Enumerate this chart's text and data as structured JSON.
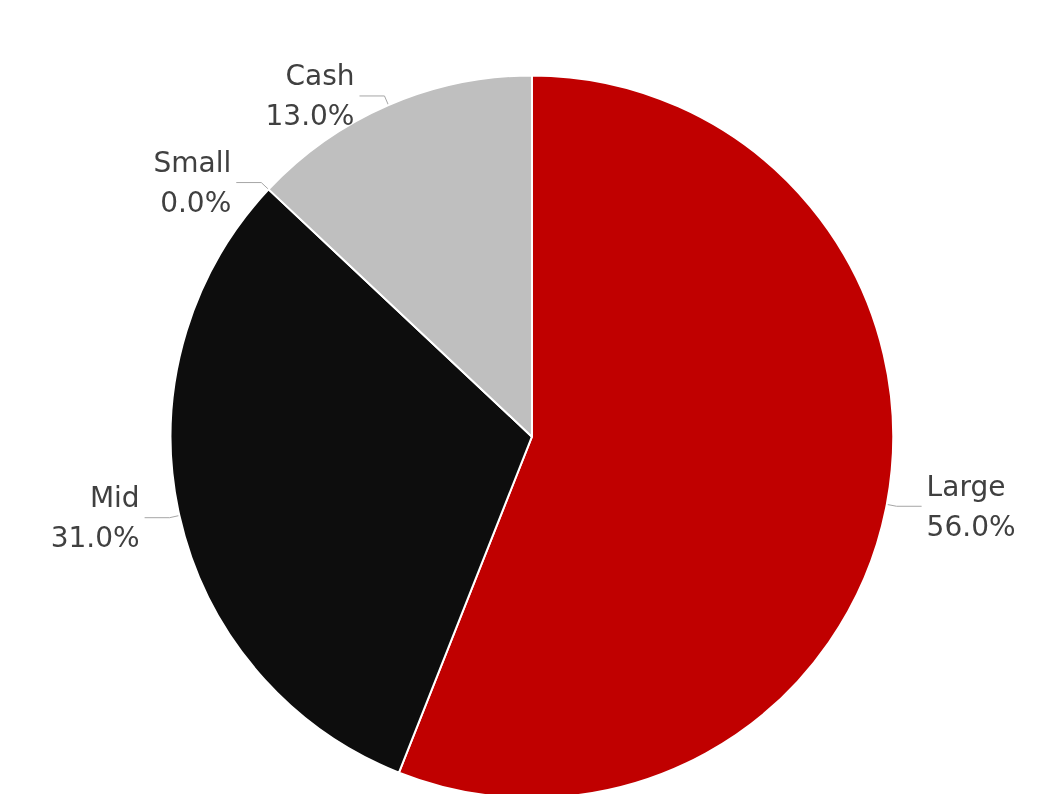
{
  "chart_data": {
    "type": "pie",
    "categories": [
      "Large",
      "Mid",
      "Small",
      "Cash"
    ],
    "values": [
      56,
      31,
      0,
      13
    ],
    "value_labels": [
      "56.0%",
      "31.0%",
      "0.0%",
      "13.0%"
    ],
    "colors": [
      "#c00000",
      "#0d0d0d",
      "#7f7f7f",
      "#bfbfbf"
    ],
    "legend": false
  }
}
